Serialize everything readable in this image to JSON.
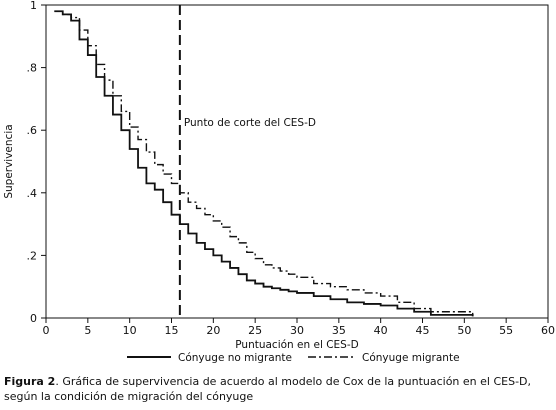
{
  "caption": {
    "label": "Figura 2",
    "text": ". Gráfica de supervivencia de acuerdo al modelo de Cox de la puntuación en el CES-D, según la condición de migración del cónyuge"
  },
  "chart_data": {
    "type": "line",
    "step": true,
    "xlabel": "Puntuación en el CES-D",
    "ylabel": "Supervivencia",
    "xlim": [
      0,
      60
    ],
    "ylim": [
      0,
      1
    ],
    "xticks": [
      0,
      5,
      10,
      15,
      20,
      25,
      30,
      35,
      40,
      45,
      50,
      55,
      60
    ],
    "yticks": [
      0,
      0.2,
      0.4,
      0.6,
      0.8,
      1
    ],
    "ytick_labels": [
      "0",
      ".2",
      ".4",
      ".6",
      ".8",
      "1"
    ],
    "legend_position": "bottom",
    "annotations": [
      {
        "text": "Punto de corte del CES-D",
        "x": 16,
        "style": "dashed vertical line"
      }
    ],
    "series": [
      {
        "name": "Cónyuge no migrante",
        "line_style": "solid",
        "color": "#111111",
        "x": [
          1,
          2,
          3,
          4,
          5,
          6,
          7,
          8,
          9,
          10,
          11,
          12,
          13,
          14,
          15,
          16,
          17,
          18,
          19,
          20,
          21,
          22,
          23,
          24,
          25,
          26,
          27,
          28,
          29,
          30,
          32,
          34,
          36,
          38,
          40,
          42,
          44,
          46,
          51
        ],
        "y": [
          0.98,
          0.97,
          0.95,
          0.89,
          0.84,
          0.77,
          0.71,
          0.65,
          0.6,
          0.54,
          0.48,
          0.43,
          0.41,
          0.37,
          0.33,
          0.3,
          0.27,
          0.24,
          0.22,
          0.2,
          0.18,
          0.16,
          0.14,
          0.12,
          0.11,
          0.1,
          0.095,
          0.09,
          0.085,
          0.08,
          0.07,
          0.06,
          0.05,
          0.045,
          0.04,
          0.03,
          0.02,
          0.01,
          0.005
        ]
      },
      {
        "name": "Cónyuge migrante",
        "line_style": "dash-dot",
        "color": "#111111",
        "x": [
          1,
          2,
          3,
          4,
          5,
          6,
          7,
          8,
          9,
          10,
          11,
          12,
          13,
          14,
          15,
          16,
          17,
          18,
          19,
          20,
          21,
          22,
          23,
          24,
          25,
          26,
          27,
          28,
          29,
          30,
          32,
          34,
          36,
          38,
          40,
          42,
          44,
          46,
          51
        ],
        "y": [
          0.98,
          0.97,
          0.96,
          0.92,
          0.87,
          0.81,
          0.76,
          0.71,
          0.66,
          0.61,
          0.57,
          0.53,
          0.49,
          0.46,
          0.43,
          0.4,
          0.37,
          0.35,
          0.33,
          0.31,
          0.29,
          0.26,
          0.24,
          0.21,
          0.19,
          0.17,
          0.16,
          0.15,
          0.14,
          0.13,
          0.11,
          0.1,
          0.09,
          0.08,
          0.07,
          0.05,
          0.03,
          0.02,
          0.01
        ]
      }
    ]
  }
}
